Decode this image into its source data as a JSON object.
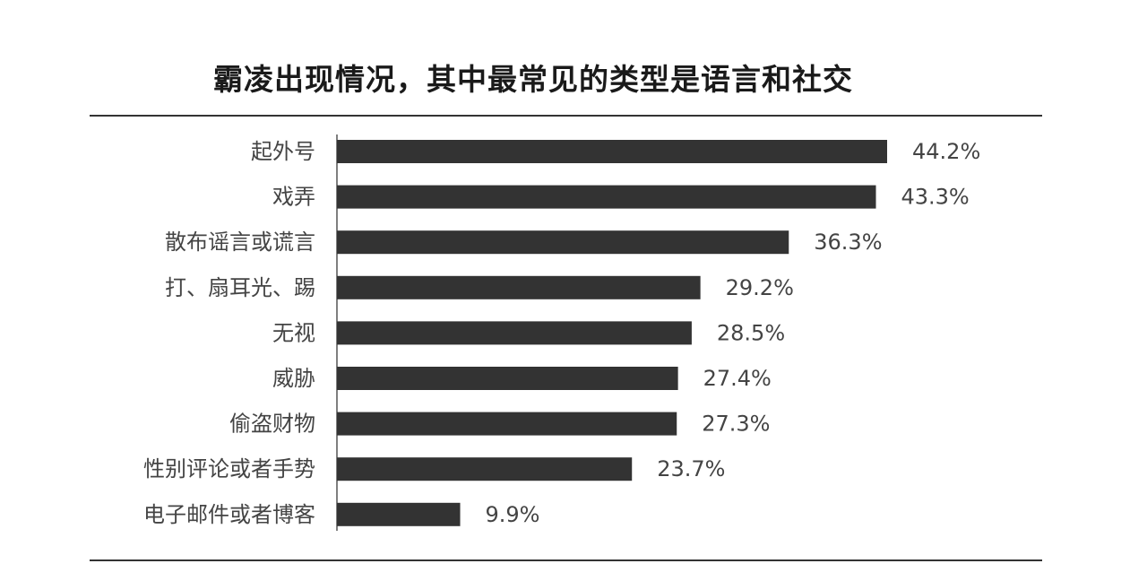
{
  "chart_data": {
    "type": "bar",
    "orientation": "horizontal",
    "title": "霸凌出现情况，其中最常见的类型是语言和社交",
    "categories": [
      "起外号",
      "戏弄",
      "散布谣言或谎言",
      "打、扇耳光、踢",
      "无视",
      "威胁",
      "偷盗财物",
      "性别评论或者手势",
      "电子邮件或者博客"
    ],
    "values": [
      44.2,
      43.3,
      36.3,
      29.2,
      28.5,
      27.4,
      27.3,
      23.7,
      9.9
    ],
    "value_labels": [
      "44.2%",
      "43.3%",
      "36.3%",
      "29.2%",
      "28.5%",
      "27.4%",
      "27.3%",
      "23.7%",
      "9.9%"
    ],
    "unit": "%",
    "xlim": [
      0,
      50
    ],
    "grid": false,
    "bar_color": "#333333"
  }
}
